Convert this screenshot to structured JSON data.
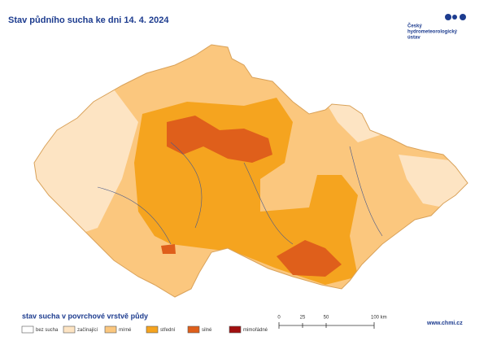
{
  "header": {
    "title": "Stav půdního sucha ke dni 14. 4. 2024",
    "logo_lines": [
      "Český",
      "hydrometeorologický",
      "ústav"
    ]
  },
  "legend": {
    "title": "stav sucha v povrchové vrstvě půdy",
    "items": [
      {
        "label": "bez sucha",
        "color": "#ffffff"
      },
      {
        "label": "začínající",
        "color": "#fde4c3"
      },
      {
        "label": "mírné",
        "color": "#fbc77e"
      },
      {
        "label": "střední",
        "color": "#f5a41f"
      },
      {
        "label": "silné",
        "color": "#df5f1b"
      },
      {
        "label": "mimořádné",
        "color": "#a10f0f"
      }
    ]
  },
  "scale": {
    "labels": [
      "0",
      "25",
      "50",
      "100 km"
    ]
  },
  "footer": {
    "url": "www.chmi.cz"
  }
}
